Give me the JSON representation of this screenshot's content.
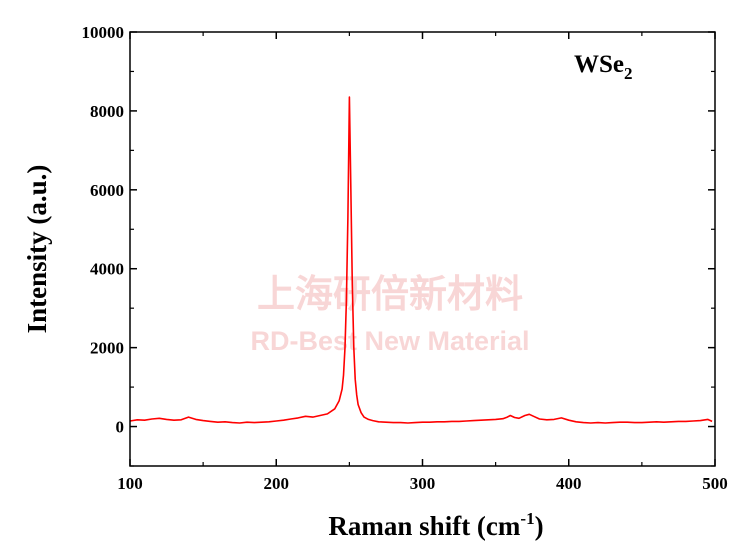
{
  "chart_data": {
    "type": "line",
    "title": "",
    "xlabel": "Raman shift (cm",
    "xlabel_superscript": "-1",
    "xlabel_close": ")",
    "ylabel": "Intensity (a.u.)",
    "annotation": {
      "text": "WSe",
      "subscript": "2"
    },
    "xlim": [
      100,
      500
    ],
    "ylim": [
      -1000,
      10000
    ],
    "x_ticks": [
      100,
      200,
      300,
      400,
      500
    ],
    "y_ticks": [
      0,
      2000,
      4000,
      6000,
      8000,
      10000
    ],
    "grid": false,
    "legend": "none",
    "series": [
      {
        "color": "#ff0000",
        "x": [
          100,
          105,
          110,
          115,
          120,
          125,
          130,
          135,
          140,
          145,
          150,
          155,
          160,
          165,
          170,
          175,
          180,
          185,
          190,
          195,
          200,
          205,
          210,
          215,
          220,
          225,
          230,
          235,
          240,
          243,
          245,
          246,
          247,
          248,
          249,
          250,
          251,
          252,
          253,
          254,
          255,
          256,
          258,
          260,
          263,
          266,
          270,
          275,
          280,
          285,
          290,
          295,
          300,
          305,
          310,
          315,
          320,
          325,
          330,
          335,
          340,
          345,
          350,
          355,
          358,
          360,
          363,
          366,
          370,
          373,
          376,
          380,
          385,
          390,
          395,
          400,
          405,
          410,
          415,
          420,
          425,
          430,
          435,
          440,
          445,
          450,
          455,
          460,
          465,
          470,
          475,
          480,
          485,
          490,
          495,
          498
        ],
        "y": [
          140,
          170,
          160,
          190,
          210,
          180,
          160,
          170,
          240,
          180,
          150,
          130,
          110,
          120,
          100,
          90,
          110,
          100,
          110,
          120,
          140,
          160,
          190,
          220,
          260,
          240,
          280,
          320,
          450,
          650,
          950,
          1300,
          2000,
          3200,
          5300,
          8350,
          6100,
          3600,
          2000,
          1200,
          800,
          560,
          350,
          240,
          180,
          150,
          120,
          110,
          100,
          100,
          90,
          100,
          110,
          110,
          120,
          120,
          130,
          130,
          140,
          150,
          160,
          170,
          180,
          200,
          240,
          280,
          230,
          210,
          280,
          310,
          260,
          190,
          170,
          180,
          220,
          160,
          120,
          100,
          90,
          100,
          90,
          100,
          110,
          110,
          100,
          100,
          110,
          120,
          110,
          120,
          130,
          130,
          140,
          150,
          180,
          130
        ]
      }
    ]
  },
  "watermark": {
    "line1": "上海研倍新材料",
    "line2": "RD-Best New Material"
  }
}
